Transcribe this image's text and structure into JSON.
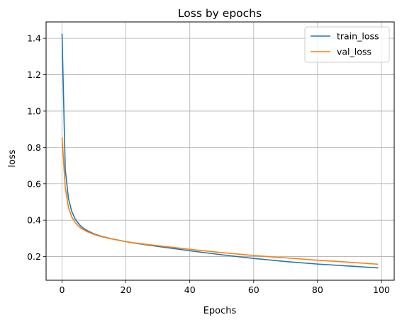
{
  "chart_data": {
    "type": "line",
    "title": "Loss by epochs",
    "xlabel": "Epochs",
    "ylabel": "loss",
    "xlim": [
      -5,
      104
    ],
    "ylim": [
      0.07,
      1.49
    ],
    "xticks": [
      0,
      20,
      40,
      60,
      80,
      100
    ],
    "yticks": [
      0.2,
      0.4,
      0.6,
      0.8,
      1.0,
      1.2,
      1.4
    ],
    "ytick_labels": [
      "0.2",
      "0.4",
      "0.6",
      "0.8",
      "1.0",
      "1.2",
      "1.4"
    ],
    "grid": true,
    "legend_position": "top-right",
    "series": [
      {
        "name": "train_loss",
        "color": "#1f77b4",
        "x": [
          0,
          1,
          2,
          3,
          4,
          5,
          6,
          7,
          8,
          10,
          12,
          15,
          20,
          25,
          30,
          40,
          50,
          60,
          70,
          80,
          90,
          99
        ],
        "y": [
          1.425,
          0.68,
          0.52,
          0.45,
          0.41,
          0.385,
          0.365,
          0.352,
          0.342,
          0.325,
          0.313,
          0.3,
          0.282,
          0.268,
          0.256,
          0.232,
          0.21,
          0.19,
          0.173,
          0.159,
          0.148,
          0.138
        ]
      },
      {
        "name": "val_loss",
        "color": "#ff7f0e",
        "x": [
          0,
          1,
          2,
          3,
          4,
          5,
          6,
          7,
          8,
          10,
          12,
          15,
          20,
          25,
          30,
          40,
          50,
          60,
          70,
          80,
          90,
          99
        ],
        "y": [
          0.855,
          0.58,
          0.47,
          0.42,
          0.39,
          0.37,
          0.355,
          0.345,
          0.336,
          0.322,
          0.311,
          0.299,
          0.282,
          0.27,
          0.26,
          0.24,
          0.222,
          0.206,
          0.193,
          0.18,
          0.169,
          0.158
        ]
      }
    ]
  }
}
